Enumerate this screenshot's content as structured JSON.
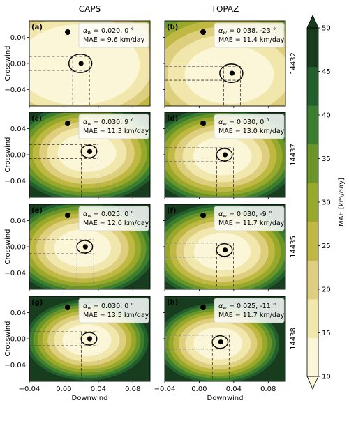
{
  "chart_data": {
    "type": "contour",
    "columns": [
      "CAPS",
      "TOPAZ"
    ],
    "xlabel": "Downwind",
    "ylabel": "Crosswind",
    "xlim": [
      -0.04,
      0.1
    ],
    "ylim": [
      -0.065,
      0.065
    ],
    "x_ticks": [
      "−0.04",
      "0.00",
      "0.04",
      "0.08"
    ],
    "y_ticks": [
      "0.04",
      "0.00",
      "−0.04"
    ],
    "colorbar": {
      "label": "MAE [km/day]",
      "levels": [
        10,
        15,
        20,
        25,
        30,
        35,
        40,
        45,
        50
      ],
      "tick_labels": [
        "10",
        "15",
        "20",
        "25",
        "30",
        "35",
        "40",
        "45",
        "50"
      ],
      "colors": [
        "#fbf6d8",
        "#f1e7ad",
        "#ddcf7e",
        "#bfb843",
        "#98a82a",
        "#6b9528",
        "#3b7e2e",
        "#235f2d",
        "#173c1e"
      ]
    },
    "panels": [
      {
        "label": "(a)",
        "column": "CAPS",
        "buoy": "14432",
        "min_x": 0.02,
        "min_y": 0.0,
        "legend_line1": "α",
        "legend_sub": "w",
        "legend_rest": " = 0.020, 0 °",
        "legend_line2": "MAE = 9.6 km/day",
        "mae": 9.6,
        "scale": 1.0
      },
      {
        "label": "(b)",
        "column": "TOPAZ",
        "buoy": "14432",
        "min_x": 0.038,
        "min_y": -0.015,
        "legend_line1": "α",
        "legend_sub": "w",
        "legend_rest": " = 0.038, -23 °",
        "legend_line2": "MAE = 11.4 km/day",
        "mae": 11.4,
        "scale": 1.0
      },
      {
        "label": "(c)",
        "column": "CAPS",
        "buoy": "14437",
        "min_x": 0.03,
        "min_y": 0.005,
        "legend_line1": "α",
        "legend_sub": "w",
        "legend_rest": " = 0.030, 9 °",
        "legend_line2": "MAE = 11.3 km/day",
        "mae": 11.3,
        "scale": 0.62
      },
      {
        "label": "(d)",
        "column": "TOPAZ",
        "buoy": "14437",
        "min_x": 0.03,
        "min_y": 0.0,
        "legend_line1": "α",
        "legend_sub": "w",
        "legend_rest": " = 0.030, 0 °",
        "legend_line2": "MAE = 13.0 km/day",
        "mae": 13.0,
        "scale": 0.62
      },
      {
        "label": "(e)",
        "column": "CAPS",
        "buoy": "14435",
        "min_x": 0.025,
        "min_y": 0.0,
        "legend_line1": "α",
        "legend_sub": "w",
        "legend_rest": " = 0.025, 0 °",
        "legend_line2": "MAE = 12.0 km/day",
        "mae": 12.0,
        "scale": 0.6
      },
      {
        "label": "(f)",
        "column": "TOPAZ",
        "buoy": "14435",
        "min_x": 0.03,
        "min_y": -0.005,
        "legend_line1": "α",
        "legend_sub": "w",
        "legend_rest": " = 0.030, -9 °",
        "legend_line2": "MAE = 11.7 km/day",
        "mae": 11.7,
        "scale": 0.6
      },
      {
        "label": "(g)",
        "column": "CAPS",
        "buoy": "14438",
        "min_x": 0.03,
        "min_y": 0.0,
        "legend_line1": "α",
        "legend_sub": "w",
        "legend_rest": " = 0.030, 0 °",
        "legend_line2": "MAE = 13.5 km/day",
        "mae": 13.5,
        "scale": 0.5
      },
      {
        "label": "(h)",
        "column": "TOPAZ",
        "buoy": "14438",
        "min_x": 0.025,
        "min_y": -0.005,
        "legend_line1": "α",
        "legend_sub": "w",
        "legend_rest": " = 0.025, -11 °",
        "legend_line2": "MAE = 11.7 km/day",
        "mae": 11.7,
        "scale": 0.5
      }
    ]
  }
}
